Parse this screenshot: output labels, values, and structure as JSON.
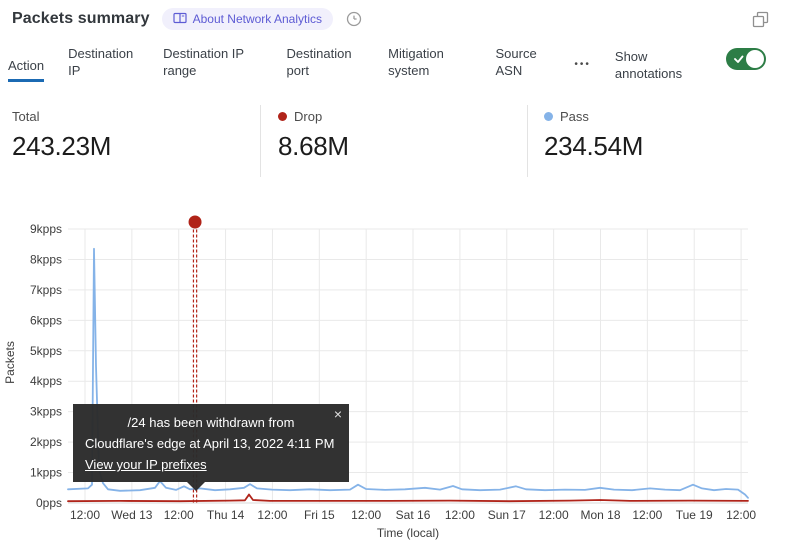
{
  "header": {
    "title": "Packets summary",
    "about_badge": "About Network Analytics"
  },
  "tabs": {
    "items": [
      {
        "label": "Action",
        "active": true
      },
      {
        "label": "Destination IP",
        "active": false
      },
      {
        "label": "Destination IP range",
        "active": false
      },
      {
        "label": "Destination port",
        "active": false
      },
      {
        "label": "Mitigation system",
        "active": false
      },
      {
        "label": "Source ASN",
        "active": false
      }
    ],
    "more_label": "•••",
    "annotations_label": "Show annotations",
    "annotations_enabled": true
  },
  "stats": {
    "items": [
      {
        "label": "Total",
        "value": "243.23M",
        "color": null
      },
      {
        "label": "Drop",
        "value": "8.68M",
        "color": "#b0241a"
      },
      {
        "label": "Pass",
        "value": "234.54M",
        "color": "#85b3e8"
      }
    ]
  },
  "annotation_tooltip": {
    "line1": "/24 has been withdrawn from",
    "line2": "Cloudflare's edge at April 13, 2022 4:11 PM",
    "link_label": "View your IP prefixes",
    "close_label": "×"
  },
  "colors": {
    "accent_blue": "#1b6ab3",
    "drop_red": "#b0241a",
    "pass_blue": "#85b3e8",
    "annotation_red": "#b02318",
    "toggle_green": "#2d7d46",
    "badge_purple": "#5d5bd4"
  },
  "chart_data": {
    "type": "line",
    "title": "Packets summary",
    "xlabel": "Time (local)",
    "ylabel": "Packets",
    "y_unit": "kpps",
    "x_unit": "hours since first tick (12:00 before Wed 13)",
    "grid": true,
    "grid_color": "#e9e9e9",
    "legend_position": "top-stats-row",
    "x_tick_labels": [
      "12:00",
      "Wed 13",
      "12:00",
      "Thu 14",
      "12:00",
      "Fri 15",
      "12:00",
      "Sat 16",
      "12:00",
      "Sun 17",
      "12:00",
      "Mon 18",
      "12:00",
      "Tue 19",
      "12:00"
    ],
    "x_tick_hours": [
      0,
      12,
      24,
      36,
      48,
      60,
      72,
      84,
      96,
      108,
      120,
      132,
      144,
      156,
      168
    ],
    "y_tick_labels": [
      "0pps",
      "1kpps",
      "2kpps",
      "3kpps",
      "4kpps",
      "5kpps",
      "6kpps",
      "7kpps",
      "8kpps",
      "9kpps"
    ],
    "x_range_hours": [
      -4.35,
      169.77
    ],
    "y_range_kpps": [
      0,
      9.23
    ],
    "annotation": {
      "t_hours": 28.18,
      "time_label": "April 13, 2022 4:11 PM",
      "text": "/24 has been withdrawn from Cloudflare's edge at April 13, 2022 4:11 PM",
      "color": "#b02318"
    },
    "series": [
      {
        "name": "Pass",
        "color": "#85b3e8",
        "points": [
          [
            -4.35,
            0.45
          ],
          [
            0.77,
            0.48
          ],
          [
            1.79,
            0.6
          ],
          [
            2.3,
            8.35
          ],
          [
            2.82,
            4.5
          ],
          [
            3.59,
            1.1
          ],
          [
            4.61,
            0.65
          ],
          [
            5.89,
            0.45
          ],
          [
            8.96,
            0.4
          ],
          [
            14.08,
            0.42
          ],
          [
            17.93,
            0.5
          ],
          [
            19.21,
            0.72
          ],
          [
            20.74,
            0.5
          ],
          [
            23.3,
            0.43
          ],
          [
            25.35,
            0.55
          ],
          [
            26.89,
            0.45
          ],
          [
            29.45,
            0.48
          ],
          [
            33.29,
            0.42
          ],
          [
            37.13,
            0.45
          ],
          [
            40.72,
            0.5
          ],
          [
            42.25,
            0.62
          ],
          [
            44.05,
            0.48
          ],
          [
            47.89,
            0.44
          ],
          [
            52.5,
            0.42
          ],
          [
            57.62,
            0.45
          ],
          [
            62.74,
            0.42
          ],
          [
            67.86,
            0.44
          ],
          [
            69.91,
            0.6
          ],
          [
            71.96,
            0.46
          ],
          [
            76.82,
            0.43
          ],
          [
            81.95,
            0.45
          ],
          [
            87.07,
            0.5
          ],
          [
            90.91,
            0.44
          ],
          [
            94.24,
            0.56
          ],
          [
            96.54,
            0.45
          ],
          [
            101.15,
            0.42
          ],
          [
            106.27,
            0.44
          ],
          [
            110.37,
            0.55
          ],
          [
            112.93,
            0.45
          ],
          [
            117.79,
            0.42
          ],
          [
            122.91,
            0.44
          ],
          [
            128.03,
            0.43
          ],
          [
            131.87,
            0.5
          ],
          [
            135.46,
            0.44
          ],
          [
            140.07,
            0.42
          ],
          [
            144.68,
            0.48
          ],
          [
            148.52,
            0.44
          ],
          [
            152.36,
            0.42
          ],
          [
            155.69,
            0.6
          ],
          [
            157.99,
            0.48
          ],
          [
            161.06,
            0.42
          ],
          [
            164.13,
            0.46
          ],
          [
            167.21,
            0.44
          ],
          [
            169.0,
            0.28
          ],
          [
            169.77,
            0.17
          ]
        ]
      },
      {
        "name": "Drop",
        "color": "#b0241a",
        "points": [
          [
            -4.35,
            0.06
          ],
          [
            8.96,
            0.07
          ],
          [
            24.33,
            0.06
          ],
          [
            37.13,
            0.08
          ],
          [
            40.97,
            0.09
          ],
          [
            42.0,
            0.28
          ],
          [
            43.02,
            0.1
          ],
          [
            47.38,
            0.07
          ],
          [
            62.74,
            0.07
          ],
          [
            78.1,
            0.07
          ],
          [
            93.47,
            0.08
          ],
          [
            108.83,
            0.06
          ],
          [
            124.19,
            0.08
          ],
          [
            131.87,
            0.1
          ],
          [
            139.56,
            0.07
          ],
          [
            154.93,
            0.08
          ],
          [
            169.77,
            0.07
          ]
        ]
      }
    ]
  }
}
